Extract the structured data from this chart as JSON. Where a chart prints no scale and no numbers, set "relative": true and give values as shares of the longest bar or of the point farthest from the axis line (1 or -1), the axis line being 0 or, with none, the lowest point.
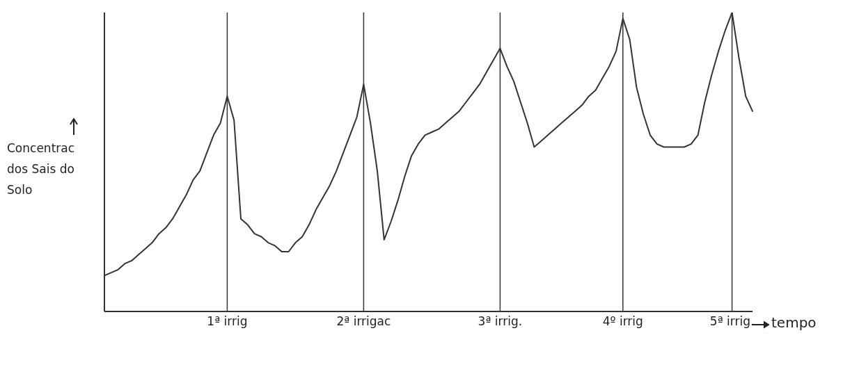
{
  "chart_data": {
    "type": "line",
    "relative": true,
    "xlabel": "tempo",
    "ylabel": "Concentrac dos Sais do Solo",
    "color": "#333333",
    "marker": "none",
    "grid": false,
    "legend": false,
    "categories": [
      null,
      null,
      null,
      null,
      null,
      null,
      null,
      null,
      null,
      null,
      null,
      null,
      null,
      null,
      null,
      null,
      null,
      null,
      "1ª irrig",
      null,
      null,
      null,
      null,
      null,
      null,
      null,
      null,
      null,
      null,
      null,
      null,
      null,
      null,
      null,
      null,
      null,
      null,
      null,
      "2ª irrigac",
      null,
      null,
      null,
      null,
      null,
      null,
      null,
      null,
      null,
      null,
      null,
      null,
      null,
      null,
      null,
      null,
      null,
      null,
      null,
      "3ª irrig.",
      null,
      null,
      null,
      null,
      null,
      null,
      null,
      null,
      null,
      null,
      null,
      null,
      null,
      null,
      null,
      null,
      null,
      "4º irrig",
      null,
      null,
      null,
      null,
      null,
      null,
      null,
      null,
      null,
      null,
      null,
      null,
      null,
      null,
      null,
      "5ª irrig.",
      null,
      null,
      null
    ],
    "values": [
      0.12,
      0.13,
      0.14,
      0.16,
      0.17,
      0.19,
      0.21,
      0.23,
      0.26,
      0.28,
      0.31,
      0.35,
      0.39,
      0.44,
      0.47,
      0.53,
      0.59,
      0.63,
      0.72,
      0.64,
      0.31,
      0.29,
      0.26,
      0.25,
      0.23,
      0.22,
      0.2,
      0.2,
      0.23,
      0.25,
      0.29,
      0.34,
      0.38,
      0.42,
      0.47,
      0.53,
      0.59,
      0.65,
      0.76,
      0.63,
      0.47,
      0.24,
      0.3,
      0.37,
      0.45,
      0.52,
      0.56,
      0.59,
      0.6,
      0.61,
      0.63,
      0.65,
      0.67,
      0.7,
      0.73,
      0.76,
      0.8,
      0.84,
      0.88,
      0.82,
      0.77,
      0.7,
      0.63,
      0.55,
      0.57,
      0.59,
      0.61,
      0.63,
      0.65,
      0.67,
      0.69,
      0.72,
      0.74,
      0.78,
      0.82,
      0.87,
      0.98,
      0.91,
      0.75,
      0.66,
      0.59,
      0.56,
      0.55,
      0.55,
      0.55,
      0.55,
      0.56,
      0.59,
      0.7,
      0.79,
      0.87,
      0.94,
      1,
      0.85,
      0.72,
      0.67
    ],
    "ref_lines": [
      {
        "axis": "x",
        "value": "1ª irrig",
        "color": "#333333"
      },
      {
        "axis": "x",
        "value": "2ª irrigac",
        "color": "#333333"
      },
      {
        "axis": "x",
        "value": "3ª irrig.",
        "color": "#333333"
      },
      {
        "axis": "x",
        "value": "4º irrig",
        "color": "#333333"
      },
      {
        "axis": "x",
        "value": "5ª irrig.",
        "color": "#333333"
      }
    ]
  }
}
